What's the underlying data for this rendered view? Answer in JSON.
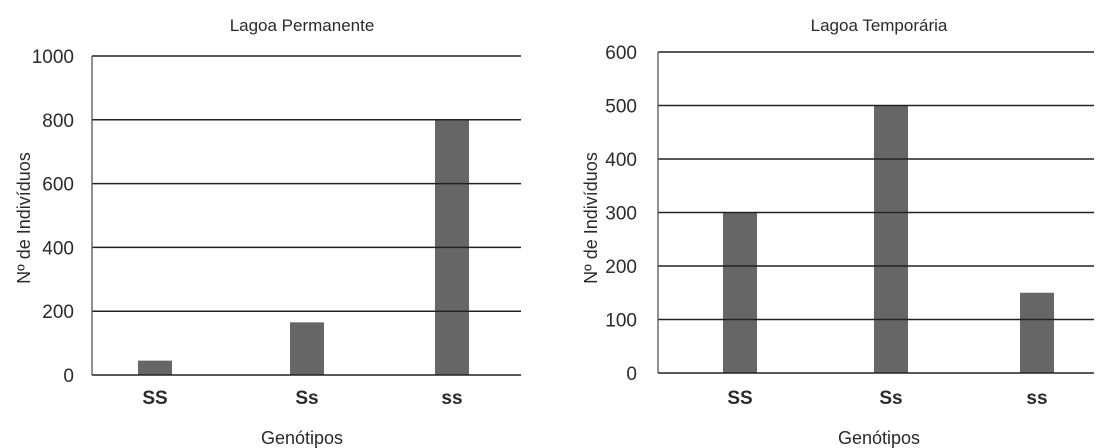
{
  "chart_data": [
    {
      "type": "bar",
      "title": "Lagoa Permanente",
      "xlabel": "Genótipos",
      "ylabel": "Nº de Indivíduos",
      "categories": [
        "SS",
        "Ss",
        "ss"
      ],
      "values": [
        45,
        165,
        800
      ],
      "ylim": [
        0,
        1000
      ],
      "yticks": [
        0,
        200,
        400,
        600,
        800,
        1000
      ],
      "grid": true,
      "bar_color": "#666666"
    },
    {
      "type": "bar",
      "title": "Lagoa Temporária",
      "xlabel": "Genótipos",
      "ylabel": "Nº de Indivíduos",
      "categories": [
        "SS",
        "Ss",
        "ss"
      ],
      "values": [
        300,
        500,
        150
      ],
      "ylim": [
        0,
        600
      ],
      "yticks": [
        0,
        100,
        200,
        300,
        400,
        500,
        600
      ],
      "grid": true,
      "bar_color": "#666666"
    }
  ]
}
